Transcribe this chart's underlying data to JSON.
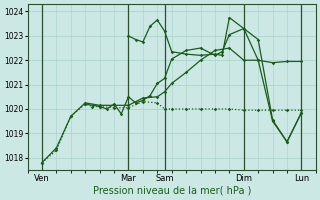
{
  "xlabel": "Pression niveau de la mer( hPa )",
  "bg_color": "#cce8e4",
  "grid_color": "#a8cfc8",
  "line_color": "#1a5c1a",
  "ylim": [
    1017.5,
    1024.3
  ],
  "yticks": [
    1018,
    1019,
    1020,
    1021,
    1022,
    1023,
    1024
  ],
  "xlim": [
    0,
    20
  ],
  "day_labels": [
    "Ven",
    "Mar",
    "Sam",
    "Dim",
    "Lun"
  ],
  "day_positions": [
    1,
    7,
    9.5,
    15,
    19
  ],
  "vline_positions": [
    1,
    7,
    9.5,
    15,
    19
  ],
  "series1_x": [
    1,
    2,
    3,
    4,
    4.5,
    5,
    6,
    7,
    8,
    9,
    9.5,
    10,
    11,
    12,
    13,
    14,
    15,
    16,
    17,
    18,
    19
  ],
  "series1_y": [
    1017.8,
    1018.3,
    1019.7,
    1020.2,
    1020.1,
    1020.1,
    1020.05,
    1020.05,
    1020.3,
    1020.25,
    1020.0,
    1020.0,
    1020.0,
    1020.0,
    1020.0,
    1020.0,
    1019.95,
    1019.95,
    1019.95,
    1019.95,
    1019.95
  ],
  "series2_x": [
    1,
    2,
    3,
    4,
    5,
    6,
    7,
    8,
    9,
    9.5,
    10,
    11,
    12,
    13,
    14,
    15,
    16,
    17,
    18,
    19
  ],
  "series2_y": [
    1017.8,
    1018.4,
    1019.7,
    1020.25,
    1020.15,
    1020.15,
    1020.15,
    1020.45,
    1020.5,
    1020.7,
    1021.05,
    1021.5,
    1022.0,
    1022.4,
    1022.5,
    1022.0,
    1022.0,
    1021.9,
    1021.95,
    1021.95
  ],
  "series3_x": [
    4,
    5,
    5.5,
    6,
    6.5,
    7,
    7.5,
    8,
    8.5,
    9,
    9.5,
    10,
    11,
    12,
    13,
    13.5,
    14,
    15,
    16,
    17,
    18,
    19
  ],
  "series3_y": [
    1020.2,
    1020.1,
    1020.0,
    1020.2,
    1019.8,
    1020.5,
    1020.25,
    1020.35,
    1020.55,
    1021.05,
    1021.25,
    1022.05,
    1022.4,
    1022.5,
    1022.2,
    1022.35,
    1023.05,
    1023.3,
    1022.85,
    1019.55,
    1018.65,
    1019.85
  ],
  "series4_x": [
    7,
    7.5,
    8,
    8.5,
    9,
    9.5,
    10,
    11,
    12,
    13,
    13.5,
    14,
    15,
    16,
    17,
    18,
    19
  ],
  "series4_y": [
    1023.0,
    1022.85,
    1022.75,
    1023.4,
    1023.65,
    1023.2,
    1022.35,
    1022.25,
    1022.2,
    1022.25,
    1022.2,
    1023.75,
    1023.3,
    1022.0,
    1019.5,
    1018.65,
    1019.85
  ]
}
